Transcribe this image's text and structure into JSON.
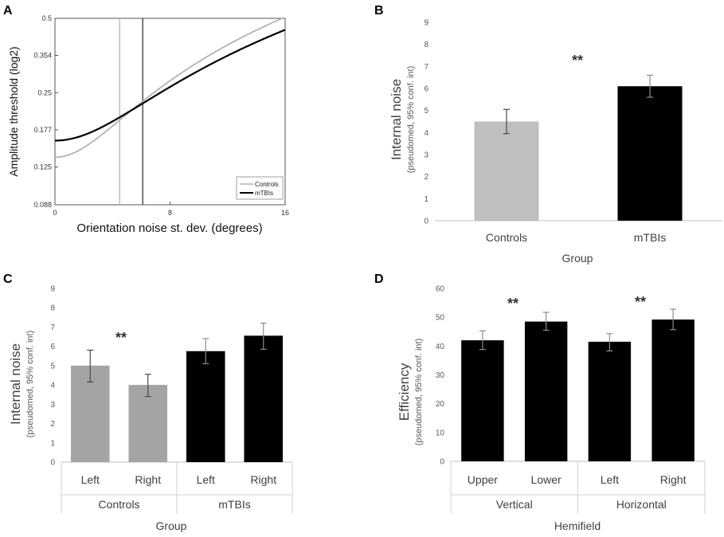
{
  "chart_data": [
    {
      "panel": "A",
      "type": "line",
      "xlabel": "Orientation noise st. dev. (degrees)",
      "ylabel": "Amplitude threshold (log2)",
      "xlim": [
        0,
        16
      ],
      "ylim": [
        0.088,
        0.5
      ],
      "xticks": [
        "0",
        "8",
        "16"
      ],
      "yticks": [
        "0.088",
        "0.125",
        "0.177",
        "0.25",
        "0.354",
        "0.5"
      ],
      "legend_position": "bottom-right",
      "series": [
        {
          "name": "Controls",
          "color": "#b3b3b3",
          "internal_noise": 4.5,
          "floor": 0.137
        },
        {
          "name": "mTBIs",
          "color": "#000000",
          "internal_noise": 6.1,
          "floor": 0.16
        }
      ],
      "vlines": [
        {
          "x": 4.5,
          "color": "#b3b3b3"
        },
        {
          "x": 6.1,
          "color": "#333333"
        }
      ]
    },
    {
      "panel": "B",
      "type": "bar",
      "ylabel": "Internal noise",
      "ylabel_sub": "(pseudomed, 95% conf. int)",
      "xlabel": "Group",
      "ylim": [
        0,
        9
      ],
      "yticks": [
        "0",
        "1",
        "2",
        "3",
        "4",
        "5",
        "6",
        "7",
        "8",
        "9"
      ],
      "categories": [
        "Controls",
        "mTBIs"
      ],
      "values": [
        4.5,
        6.1
      ],
      "err_low": [
        3.95,
        5.6
      ],
      "err_high": [
        5.05,
        6.6
      ],
      "colors": [
        "#bfbfbf",
        "#000000"
      ],
      "annotation": "**"
    },
    {
      "panel": "C",
      "type": "bar",
      "ylabel": "Internal noise",
      "ylabel_sub": "(pseudomed, 95% conf. int)",
      "xlabel": "Group",
      "ylim": [
        0,
        9
      ],
      "yticks": [
        "0",
        "1",
        "2",
        "3",
        "4",
        "5",
        "6",
        "7",
        "8",
        "9"
      ],
      "categories": [
        "Left",
        "Right",
        "Left",
        "Right"
      ],
      "groups": [
        "Controls",
        "mTBIs"
      ],
      "values": [
        5.0,
        4.0,
        5.75,
        6.55
      ],
      "err_low": [
        4.15,
        3.4,
        5.1,
        5.85
      ],
      "err_high": [
        5.8,
        4.55,
        6.4,
        7.2
      ],
      "colors": [
        "#a6a4a2",
        "#a6a4a2",
        "#000000",
        "#000000"
      ],
      "annotation": "**"
    },
    {
      "panel": "D",
      "type": "bar",
      "ylabel": "Efficiency",
      "ylabel_sub": "(pseudomed, 95% conf. int)",
      "xlabel": "Hemifield",
      "ylim": [
        0,
        60
      ],
      "yticks": [
        "0",
        "10",
        "20",
        "30",
        "40",
        "50",
        "60"
      ],
      "categories": [
        "Upper",
        "Lower",
        "Left",
        "Right"
      ],
      "groups": [
        "Vertical",
        "Horizontal"
      ],
      "values": [
        42,
        48.5,
        41.5,
        49.2
      ],
      "err_low": [
        38.8,
        45.5,
        38.3,
        45.7
      ],
      "err_high": [
        45.3,
        51.7,
        44.3,
        52.8
      ],
      "colors": [
        "#000000",
        "#000000",
        "#000000",
        "#000000"
      ],
      "annotations": [
        "**",
        "**"
      ]
    }
  ]
}
